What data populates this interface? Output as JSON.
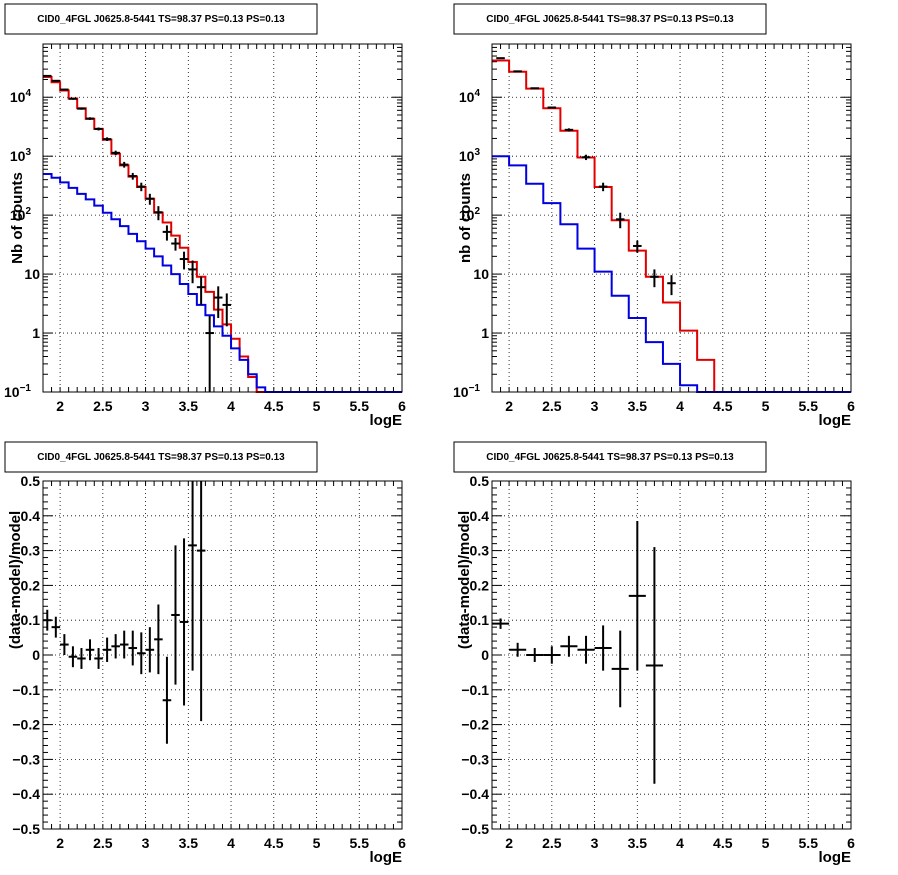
{
  "chart_data": [
    {
      "type": "line",
      "title": "CID0_4FGL J0625.8-5441 TS=98.37 PS=0.13 PS=0.13",
      "xlabel": "logE",
      "ylabel": "Nb of counts",
      "log_y": true,
      "xlim": [
        1.8,
        6
      ],
      "ylim": [
        0.1,
        80000
      ],
      "x_ticks": [
        "2",
        "2.5",
        "3",
        "3.5",
        "4",
        "4.5",
        "5",
        "5.5",
        "6"
      ],
      "y_ticks": [
        "10^-1",
        "1",
        "10",
        "10^2",
        "10^3",
        "10^4"
      ],
      "grid": true,
      "colors": {
        "total_model": "#e00000",
        "source_model": "#0000e0",
        "data": "#000000"
      },
      "bin_edges": [
        1.8,
        1.9,
        2.0,
        2.1,
        2.2,
        2.3,
        2.4,
        2.5,
        2.6,
        2.7,
        2.8,
        2.9,
        3.0,
        3.1,
        3.2,
        3.3,
        3.4,
        3.5,
        3.6,
        3.7,
        3.8,
        3.9,
        4.0,
        4.1,
        4.2,
        4.3,
        4.4,
        4.5,
        4.6,
        4.7,
        4.8,
        4.9,
        5.0,
        5.1,
        5.2,
        5.3,
        5.4,
        5.5,
        5.6,
        5.7,
        5.8,
        5.9,
        6.0
      ],
      "series": [
        {
          "role": "total_model",
          "values": [
            22000,
            18000,
            13000,
            9500,
            6500,
            4300,
            2900,
            1900,
            1100,
            700,
            450,
            300,
            190,
            110,
            75,
            45,
            28,
            16,
            9,
            5,
            2.5,
            1.4,
            0.8,
            0.4,
            0.18,
            0.1,
            0.1,
            0.1,
            0.1,
            0.1,
            0.1,
            0.1,
            0.1,
            0.1,
            0.1,
            0.1,
            0.1,
            0.1,
            0.1,
            0.1,
            0.1,
            0.1
          ]
        },
        {
          "role": "source_model",
          "values": [
            500,
            430,
            360,
            290,
            230,
            185,
            145,
            110,
            85,
            65,
            48,
            36,
            27,
            20,
            14,
            10,
            6.8,
            4.6,
            3.0,
            2.0,
            1.3,
            0.9,
            0.55,
            0.35,
            0.2,
            0.12,
            0.1,
            0.1,
            0.1,
            0.1,
            0.1,
            0.1,
            0.1,
            0.1,
            0.1,
            0.1,
            0.1,
            0.1,
            0.1,
            0.1,
            0.1,
            0.1
          ]
        }
      ],
      "points": [
        {
          "x": 1.85,
          "y": 23000,
          "err": 500
        },
        {
          "x": 1.95,
          "y": 19000,
          "err": 450
        },
        {
          "x": 2.05,
          "y": 13500,
          "err": 380
        },
        {
          "x": 2.15,
          "y": 9400,
          "err": 320
        },
        {
          "x": 2.25,
          "y": 6400,
          "err": 260
        },
        {
          "x": 2.35,
          "y": 4350,
          "err": 220
        },
        {
          "x": 2.45,
          "y": 2900,
          "err": 170
        },
        {
          "x": 2.55,
          "y": 1950,
          "err": 140
        },
        {
          "x": 2.65,
          "y": 1140,
          "err": 100
        },
        {
          "x": 2.75,
          "y": 720,
          "err": 80
        },
        {
          "x": 2.85,
          "y": 460,
          "err": 60
        },
        {
          "x": 2.95,
          "y": 305,
          "err": 50
        },
        {
          "x": 3.05,
          "y": 190,
          "err": 40
        },
        {
          "x": 3.15,
          "y": 112,
          "err": 30
        },
        {
          "x": 3.25,
          "y": 52,
          "err": 15
        },
        {
          "x": 3.35,
          "y": 33,
          "err": 8
        },
        {
          "x": 3.45,
          "y": 18,
          "err": 6
        },
        {
          "x": 3.55,
          "y": 12,
          "err": 5
        },
        {
          "x": 3.65,
          "y": 6,
          "err": 3
        },
        {
          "x": 3.75,
          "y": 1,
          "err": 0.95
        },
        {
          "x": 3.85,
          "y": 4,
          "err": 2.2
        },
        {
          "x": 3.95,
          "y": 3,
          "err": 1.7
        }
      ]
    },
    {
      "type": "line",
      "title": "CID0_4FGL J0625.8-5441 TS=98.37 PS=0.13 PS=0.13",
      "xlabel": "logE",
      "ylabel": "nb of counts",
      "log_y": true,
      "xlim": [
        1.8,
        6
      ],
      "ylim": [
        0.1,
        80000
      ],
      "x_ticks": [
        "2",
        "2.5",
        "3",
        "3.5",
        "4",
        "4.5",
        "5",
        "5.5",
        "6"
      ],
      "y_ticks": [
        "10^-1",
        "1",
        "10",
        "10^2",
        "10^3",
        "10^4"
      ],
      "grid": true,
      "colors": {
        "total_model": "#e00000",
        "source_model": "#0000e0",
        "data": "#000000"
      },
      "bin_edges": [
        1.8,
        2.0,
        2.2,
        2.4,
        2.6,
        2.8,
        3.0,
        3.2,
        3.4,
        3.6,
        3.8,
        4.0,
        4.2,
        4.4,
        4.6,
        4.8,
        5.0,
        5.2,
        5.4,
        5.6,
        5.8,
        6.0
      ],
      "series": [
        {
          "role": "total_model",
          "values": [
            42000,
            27000,
            14000,
            6500,
            2700,
            950,
            300,
            82,
            25,
            9,
            3.3,
            1.1,
            0.35,
            0.1,
            0.1,
            0.1,
            0.1,
            0.1,
            0.1,
            0.1,
            0.1
          ]
        },
        {
          "role": "source_model",
          "values": [
            1000,
            700,
            340,
            160,
            70,
            27,
            11,
            4.3,
            1.8,
            0.7,
            0.3,
            0.13,
            0.1,
            0.1,
            0.1,
            0.1,
            0.1,
            0.1,
            0.1,
            0.1,
            0.1
          ]
        }
      ],
      "points": [
        {
          "x": 1.9,
          "y": 46000,
          "err": 700
        },
        {
          "x": 2.1,
          "y": 27500,
          "err": 500
        },
        {
          "x": 2.3,
          "y": 14200,
          "err": 400
        },
        {
          "x": 2.5,
          "y": 6700,
          "err": 260
        },
        {
          "x": 2.7,
          "y": 2800,
          "err": 170
        },
        {
          "x": 2.9,
          "y": 960,
          "err": 100
        },
        {
          "x": 3.1,
          "y": 305,
          "err": 50
        },
        {
          "x": 3.3,
          "y": 85,
          "err": 25
        },
        {
          "x": 3.5,
          "y": 30,
          "err": 7
        },
        {
          "x": 3.7,
          "y": 9,
          "err": 3
        },
        {
          "x": 3.9,
          "y": 7,
          "err": 2.6
        }
      ]
    },
    {
      "type": "scatter",
      "title": "CID0_4FGL J0625.8-5441 TS=98.37 PS=0.13 PS=0.13",
      "xlabel": "logE",
      "ylabel": "(data-model)/model",
      "xlim": [
        1.8,
        6
      ],
      "ylim": [
        -0.5,
        0.5
      ],
      "x_ticks": [
        "2",
        "2.5",
        "3",
        "3.5",
        "4",
        "4.5",
        "5",
        "5.5",
        "6"
      ],
      "y_ticks": [
        "−0.5",
        "−0.4",
        "−0.3",
        "−0.2",
        "−0.1",
        "0",
        "0.1",
        "0.2",
        "0.3",
        "0.4",
        "0.5"
      ],
      "grid": true,
      "points": [
        {
          "x": 1.85,
          "y": 0.1,
          "err": 0.03,
          "xerr": 0.05
        },
        {
          "x": 1.95,
          "y": 0.08,
          "err": 0.03,
          "xerr": 0.05
        },
        {
          "x": 2.05,
          "y": 0.03,
          "err": 0.03,
          "xerr": 0.05
        },
        {
          "x": 2.15,
          "y": -0.005,
          "err": 0.03,
          "xerr": 0.05
        },
        {
          "x": 2.25,
          "y": -0.01,
          "err": 0.03,
          "xerr": 0.05
        },
        {
          "x": 2.35,
          "y": 0.015,
          "err": 0.03,
          "xerr": 0.05
        },
        {
          "x": 2.45,
          "y": -0.01,
          "err": 0.03,
          "xerr": 0.05
        },
        {
          "x": 2.55,
          "y": 0.015,
          "err": 0.035,
          "xerr": 0.05
        },
        {
          "x": 2.65,
          "y": 0.025,
          "err": 0.035,
          "xerr": 0.05
        },
        {
          "x": 2.75,
          "y": 0.03,
          "err": 0.04,
          "xerr": 0.05
        },
        {
          "x": 2.85,
          "y": 0.02,
          "err": 0.05,
          "xerr": 0.05
        },
        {
          "x": 2.95,
          "y": 0.005,
          "err": 0.06,
          "xerr": 0.05
        },
        {
          "x": 3.05,
          "y": 0.015,
          "err": 0.065,
          "xerr": 0.05
        },
        {
          "x": 3.15,
          "y": 0.045,
          "err": 0.1,
          "xerr": 0.05
        },
        {
          "x": 3.25,
          "y": -0.13,
          "err": 0.125,
          "xerr": 0.05
        },
        {
          "x": 3.35,
          "y": 0.115,
          "err": 0.2,
          "xerr": 0.05
        },
        {
          "x": 3.45,
          "y": 0.095,
          "err": 0.24,
          "xerr": 0.05
        },
        {
          "x": 3.55,
          "y": 0.315,
          "err": 0.36,
          "xerr": 0.05
        },
        {
          "x": 3.65,
          "y": 0.3,
          "err": 0.49,
          "xerr": 0.05
        }
      ]
    },
    {
      "type": "scatter",
      "title": "CID0_4FGL J0625.8-5441 TS=98.37 PS=0.13 PS=0.13",
      "xlabel": "logE",
      "ylabel": "(data-model)/model",
      "xlim": [
        1.8,
        6
      ],
      "ylim": [
        -0.5,
        0.5
      ],
      "x_ticks": [
        "2",
        "2.5",
        "3",
        "3.5",
        "4",
        "4.5",
        "5",
        "5.5",
        "6"
      ],
      "y_ticks": [
        "−0.5",
        "−0.4",
        "−0.3",
        "−0.2",
        "−0.1",
        "0",
        "0.1",
        "0.2",
        "0.3",
        "0.4",
        "0.5"
      ],
      "grid": true,
      "points": [
        {
          "x": 1.9,
          "y": 0.09,
          "err": 0.015,
          "xerr": 0.1
        },
        {
          "x": 2.1,
          "y": 0.015,
          "err": 0.02,
          "xerr": 0.1
        },
        {
          "x": 2.3,
          "y": 0.0,
          "err": 0.02,
          "xerr": 0.1
        },
        {
          "x": 2.5,
          "y": 0.0,
          "err": 0.025,
          "xerr": 0.1
        },
        {
          "x": 2.7,
          "y": 0.025,
          "err": 0.03,
          "xerr": 0.1
        },
        {
          "x": 2.9,
          "y": 0.015,
          "err": 0.04,
          "xerr": 0.1
        },
        {
          "x": 3.1,
          "y": 0.02,
          "err": 0.065,
          "xerr": 0.1
        },
        {
          "x": 3.3,
          "y": -0.04,
          "err": 0.11,
          "xerr": 0.1
        },
        {
          "x": 3.5,
          "y": 0.17,
          "err": 0.215,
          "xerr": 0.1
        },
        {
          "x": 3.7,
          "y": -0.03,
          "err": 0.34,
          "xerr": 0.1
        }
      ]
    }
  ]
}
